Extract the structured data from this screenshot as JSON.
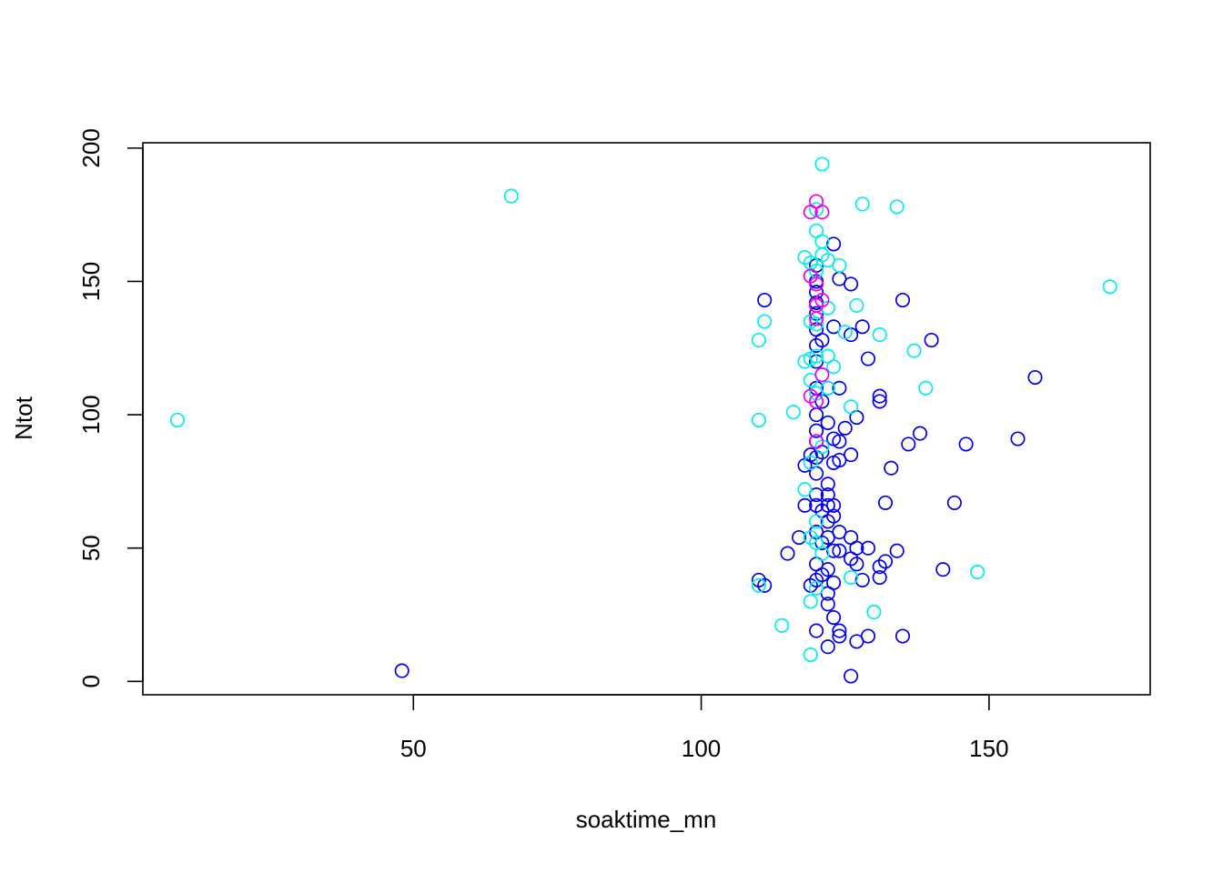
{
  "chart_data": {
    "type": "scatter",
    "xlabel": "soaktime_mn",
    "ylabel": "Ntot",
    "xlim": [
      3,
      178
    ],
    "ylim": [
      -5,
      202
    ],
    "xticks": [
      50,
      100,
      150
    ],
    "yticks": [
      0,
      50,
      100,
      150,
      200
    ],
    "x_tick_labels": [
      "50",
      "100",
      "150"
    ],
    "y_tick_labels": [
      "0",
      "50",
      "100",
      "150",
      "200"
    ],
    "grid": false,
    "legend": "none",
    "marker": "open-circle",
    "colors": {
      "series_a": "#0000ee",
      "series_b": "#00eeee",
      "series_c": "#ee00ee"
    },
    "series": [
      {
        "color": "#0000ee",
        "points": [
          [
            48,
            4
          ],
          [
            110,
            38
          ],
          [
            111,
            36
          ],
          [
            111,
            143
          ],
          [
            115,
            48
          ],
          [
            117,
            54
          ],
          [
            118,
            66
          ],
          [
            118,
            81
          ],
          [
            119,
            36
          ],
          [
            119,
            85
          ],
          [
            120,
            19
          ],
          [
            120,
            38
          ],
          [
            120,
            44
          ],
          [
            120,
            56
          ],
          [
            120,
            66
          ],
          [
            120,
            70
          ],
          [
            120,
            78
          ],
          [
            120,
            84
          ],
          [
            120,
            90
          ],
          [
            120,
            94
          ],
          [
            120,
            100
          ],
          [
            120,
            110
          ],
          [
            120,
            120
          ],
          [
            120,
            126
          ],
          [
            120,
            132
          ],
          [
            120,
            138
          ],
          [
            120,
            142
          ],
          [
            120,
            146
          ],
          [
            120,
            150
          ],
          [
            120,
            156
          ],
          [
            121,
            40
          ],
          [
            121,
            52
          ],
          [
            121,
            64
          ],
          [
            121,
            86
          ],
          [
            121,
            105
          ],
          [
            121,
            128
          ],
          [
            122,
            13
          ],
          [
            122,
            29
          ],
          [
            122,
            33
          ],
          [
            122,
            42
          ],
          [
            122,
            54
          ],
          [
            122,
            60
          ],
          [
            122,
            66
          ],
          [
            122,
            70
          ],
          [
            122,
            74
          ],
          [
            122,
            97
          ],
          [
            122,
            110
          ],
          [
            123,
            24
          ],
          [
            123,
            37
          ],
          [
            123,
            49
          ],
          [
            123,
            62
          ],
          [
            123,
            66
          ],
          [
            123,
            82
          ],
          [
            123,
            91
          ],
          [
            123,
            133
          ],
          [
            123,
            164
          ],
          [
            124,
            17
          ],
          [
            124,
            19
          ],
          [
            124,
            49
          ],
          [
            124,
            56
          ],
          [
            124,
            83
          ],
          [
            124,
            90
          ],
          [
            124,
            110
          ],
          [
            124,
            151
          ],
          [
            125,
            95
          ],
          [
            126,
            2
          ],
          [
            126,
            46
          ],
          [
            126,
            54
          ],
          [
            126,
            85
          ],
          [
            126,
            130
          ],
          [
            126,
            149
          ],
          [
            127,
            15
          ],
          [
            127,
            44
          ],
          [
            127,
            50
          ],
          [
            127,
            99
          ],
          [
            128,
            38
          ],
          [
            128,
            133
          ],
          [
            129,
            17
          ],
          [
            129,
            50
          ],
          [
            129,
            121
          ],
          [
            131,
            39
          ],
          [
            131,
            43
          ],
          [
            131,
            105
          ],
          [
            131,
            107
          ],
          [
            132,
            45
          ],
          [
            132,
            67
          ],
          [
            133,
            80
          ],
          [
            134,
            49
          ],
          [
            135,
            17
          ],
          [
            135,
            143
          ],
          [
            136,
            89
          ],
          [
            138,
            93
          ],
          [
            140,
            128
          ],
          [
            142,
            42
          ],
          [
            144,
            67
          ],
          [
            146,
            89
          ],
          [
            155,
            91
          ],
          [
            158,
            114
          ]
        ]
      },
      {
        "color": "#00eeee",
        "points": [
          [
            9,
            98
          ],
          [
            67,
            182
          ],
          [
            110,
            36
          ],
          [
            110,
            98
          ],
          [
            110,
            128
          ],
          [
            111,
            135
          ],
          [
            114,
            21
          ],
          [
            116,
            101
          ],
          [
            118,
            72
          ],
          [
            118,
            120
          ],
          [
            118,
            159
          ],
          [
            119,
            10
          ],
          [
            119,
            30
          ],
          [
            119,
            54
          ],
          [
            119,
            82
          ],
          [
            119,
            113
          ],
          [
            119,
            121
          ],
          [
            119,
            135
          ],
          [
            119,
            152
          ],
          [
            119,
            157
          ],
          [
            120,
            35
          ],
          [
            120,
            52
          ],
          [
            120,
            60
          ],
          [
            120,
            108
          ],
          [
            120,
            122
          ],
          [
            120,
            134
          ],
          [
            120,
            154
          ],
          [
            120,
            169
          ],
          [
            120,
            177
          ],
          [
            121,
            48
          ],
          [
            121,
            88
          ],
          [
            121,
            160
          ],
          [
            121,
            165
          ],
          [
            121,
            194
          ],
          [
            122,
            110
          ],
          [
            122,
            122
          ],
          [
            122,
            140
          ],
          [
            122,
            158
          ],
          [
            123,
            118
          ],
          [
            124,
            156
          ],
          [
            125,
            131
          ],
          [
            126,
            39
          ],
          [
            126,
            103
          ],
          [
            127,
            141
          ],
          [
            128,
            179
          ],
          [
            130,
            26
          ],
          [
            131,
            130
          ],
          [
            134,
            178
          ],
          [
            137,
            124
          ],
          [
            139,
            110
          ],
          [
            148,
            41
          ],
          [
            171,
            148
          ]
        ]
      },
      {
        "color": "#ee00ee",
        "points": [
          [
            119,
            107
          ],
          [
            119,
            152
          ],
          [
            119,
            176
          ],
          [
            120,
            90
          ],
          [
            120,
            105
          ],
          [
            120,
            136
          ],
          [
            120,
            141
          ],
          [
            120,
            149
          ],
          [
            120,
            180
          ],
          [
            121,
            115
          ],
          [
            121,
            143
          ],
          [
            121,
            176
          ]
        ]
      }
    ]
  }
}
